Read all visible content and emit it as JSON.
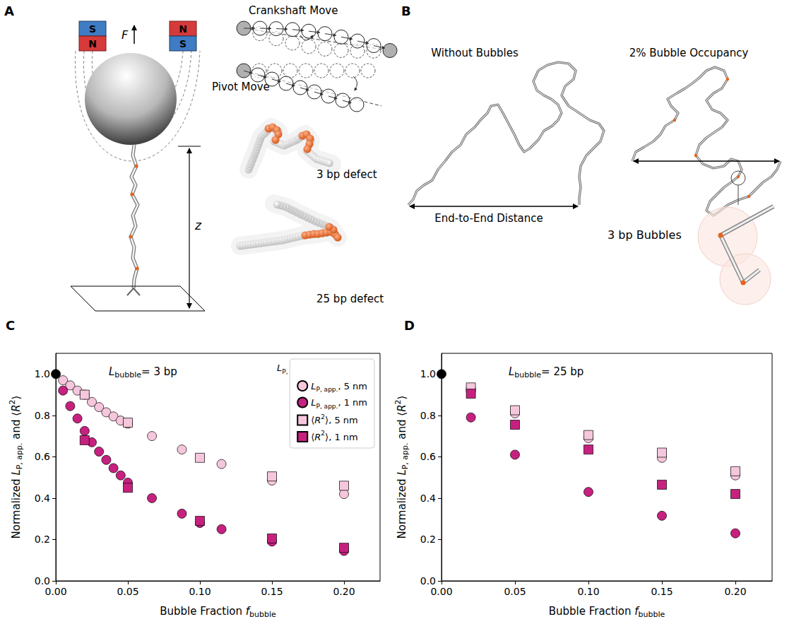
{
  "panel_labels": [
    "A",
    "B",
    "C",
    "D"
  ],
  "panel_a": {
    "magnet_left": [
      "S",
      "N"
    ],
    "magnet_right": [
      "N",
      "S"
    ],
    "force": "F",
    "height": "z",
    "moves": [
      "Crankshaft Move",
      "Pivot Move"
    ],
    "defects": [
      "3 bp defect",
      "25 bp defect"
    ]
  },
  "panel_b": {
    "titles": [
      "Without Bubbles",
      "2% Bubble Occupancy"
    ],
    "distance": "End-to-End Distance",
    "inset": "3 bp Bubbles"
  },
  "chart_data": [
    {
      "type": "scatter",
      "annotation": [
        [
          "L",
          "i"
        ],
        [
          "bubble",
          "s"
        ],
        [
          "= 3 bp",
          "n"
        ]
      ],
      "xlabel": [
        [
          "Bubble Fraction ",
          "n"
        ],
        [
          "f",
          "i"
        ],
        [
          "bubble",
          "s"
        ]
      ],
      "ylabel": [
        [
          "Normalized ",
          "n"
        ],
        [
          "L",
          "i"
        ],
        [
          "P, app.",
          "s"
        ],
        [
          " and ⟨",
          "n"
        ],
        [
          "R",
          "i"
        ],
        [
          "2",
          "p"
        ],
        [
          "⟩",
          "n"
        ]
      ],
      "xlim": [
        0,
        0.225
      ],
      "ylim": [
        0,
        1.1
      ],
      "xticks": [
        {
          "value": 0,
          "label": "0.00"
        },
        {
          "value": 0.05,
          "label": "0.05"
        },
        {
          "value": 0.1,
          "label": "0.10"
        },
        {
          "value": 0.15,
          "label": "0.15"
        },
        {
          "value": 0.2,
          "label": "0.20"
        }
      ],
      "yticks": [
        {
          "value": 0,
          "label": "0.0"
        },
        {
          "value": 0.2,
          "label": "0.2"
        },
        {
          "value": 0.4,
          "label": "0.4"
        },
        {
          "value": 0.6,
          "label": "0.6"
        },
        {
          "value": 0.8,
          "label": "0.8"
        },
        {
          "value": 1,
          "label": "1.0"
        }
      ],
      "grid": false,
      "legend": "upper right",
      "legend_title": [
        [
          "L",
          "i"
        ],
        [
          "P, bubble",
          "s"
        ]
      ],
      "series": [
        {
          "name": [
            [
              "L",
              "i"
            ],
            [
              "P, app.",
              "s"
            ],
            [
              ", 5 nm",
              "n"
            ]
          ],
          "color": "#f6c6dc",
          "marker": "circle",
          "x": [
            0.005,
            0.01,
            0.015,
            0.02,
            0.025,
            0.03,
            0.035,
            0.04,
            0.045,
            0.05,
            0.0667,
            0.0875,
            0.115,
            0.15,
            0.2
          ],
          "values": [
            0.97,
            0.945,
            0.92,
            0.9,
            0.865,
            0.84,
            0.815,
            0.795,
            0.775,
            0.76,
            0.7,
            0.635,
            0.565,
            0.485,
            0.42
          ]
        },
        {
          "name": [
            [
              "L",
              "i"
            ],
            [
              "P, app.",
              "s"
            ],
            [
              ", 1 nm",
              "n"
            ]
          ],
          "color": "#c7217f",
          "marker": "circle",
          "x": [
            0.005,
            0.01,
            0.015,
            0.02,
            0.025,
            0.03,
            0.035,
            0.04,
            0.045,
            0.05,
            0.0667,
            0.0875,
            0.1,
            0.115,
            0.15,
            0.2
          ],
          "values": [
            0.92,
            0.845,
            0.785,
            0.725,
            0.67,
            0.625,
            0.585,
            0.545,
            0.51,
            0.475,
            0.4,
            0.325,
            0.28,
            0.25,
            0.19,
            0.145
          ]
        },
        {
          "name": [
            [
              "⟨",
              "n"
            ],
            [
              "R",
              "i"
            ],
            [
              "2",
              "p"
            ],
            [
              "⟩, 5 nm",
              "n"
            ]
          ],
          "color": "#f6c6dc",
          "marker": "square",
          "x": [
            0.02,
            0.05,
            0.1,
            0.15,
            0.2
          ],
          "values": [
            0.9,
            0.765,
            0.595,
            0.505,
            0.46
          ]
        },
        {
          "name": [
            [
              "⟨",
              "n"
            ],
            [
              "R",
              "i"
            ],
            [
              "2",
              "p"
            ],
            [
              "⟩, 1 nm",
              "n"
            ]
          ],
          "color": "#c7217f",
          "marker": "square",
          "x": [
            0.02,
            0.05,
            0.1,
            0.15,
            0.2
          ],
          "values": [
            0.68,
            0.45,
            0.29,
            0.205,
            0.16
          ]
        },
        {
          "color": "#000000",
          "marker": "circle",
          "x": [
            0
          ],
          "values": [
            1
          ]
        }
      ]
    },
    {
      "type": "scatter",
      "annotation": [
        [
          "L",
          "i"
        ],
        [
          "bubble",
          "s"
        ],
        [
          "= 25 bp",
          "n"
        ]
      ],
      "xlabel": [
        [
          "Bubble Fraction ",
          "n"
        ],
        [
          "f",
          "i"
        ],
        [
          "bubble",
          "s"
        ]
      ],
      "ylabel": [
        [
          "Normalized ",
          "n"
        ],
        [
          "L",
          "i"
        ],
        [
          "P, app.",
          "s"
        ],
        [
          " and ⟨",
          "n"
        ],
        [
          "R",
          "i"
        ],
        [
          "2",
          "p"
        ],
        [
          "⟩",
          "n"
        ]
      ],
      "xlim": [
        0,
        0.225
      ],
      "ylim": [
        0,
        1.1
      ],
      "xticks": [
        {
          "value": 0,
          "label": "0.00"
        },
        {
          "value": 0.05,
          "label": "0.05"
        },
        {
          "value": 0.1,
          "label": "0.10"
        },
        {
          "value": 0.15,
          "label": "0.15"
        },
        {
          "value": 0.2,
          "label": "0.20"
        }
      ],
      "yticks": [
        {
          "value": 0,
          "label": "0.0"
        },
        {
          "value": 0.2,
          "label": "0.2"
        },
        {
          "value": 0.4,
          "label": "0.4"
        },
        {
          "value": 0.6,
          "label": "0.6"
        },
        {
          "value": 0.8,
          "label": "0.8"
        },
        {
          "value": 1,
          "label": "1.0"
        }
      ],
      "grid": false,
      "series": [
        {
          "name": [
            [
              "L",
              "i"
            ],
            [
              "P, app.",
              "s"
            ],
            [
              ", 5 nm",
              "n"
            ]
          ],
          "color": "#f6c6dc",
          "marker": "circle",
          "x": [
            0.02,
            0.05,
            0.1,
            0.15,
            0.2
          ],
          "values": [
            0.93,
            0.81,
            0.69,
            0.595,
            0.51
          ]
        },
        {
          "name": [
            [
              "L",
              "i"
            ],
            [
              "P, app.",
              "s"
            ],
            [
              ", 1 nm",
              "n"
            ]
          ],
          "color": "#c7217f",
          "marker": "circle",
          "x": [
            0.02,
            0.05,
            0.1,
            0.15,
            0.2
          ],
          "values": [
            0.79,
            0.61,
            0.43,
            0.315,
            0.23
          ]
        },
        {
          "name": [
            [
              "⟨",
              "n"
            ],
            [
              "R",
              "i"
            ],
            [
              "2",
              "p"
            ],
            [
              "⟩, 5 nm",
              "n"
            ]
          ],
          "color": "#f6c6dc",
          "marker": "square",
          "x": [
            0.02,
            0.05,
            0.1,
            0.15,
            0.2
          ],
          "values": [
            0.935,
            0.825,
            0.705,
            0.62,
            0.53
          ]
        },
        {
          "name": [
            [
              "⟨",
              "n"
            ],
            [
              "R",
              "i"
            ],
            [
              "2",
              "p"
            ],
            [
              "⟩, 1 nm",
              "n"
            ]
          ],
          "color": "#c7217f",
          "marker": "square",
          "x": [
            0.02,
            0.05,
            0.1,
            0.15,
            0.2
          ],
          "values": [
            0.905,
            0.755,
            0.635,
            0.465,
            0.42
          ]
        },
        {
          "color": "#000000",
          "marker": "circle",
          "x": [
            0
          ],
          "values": [
            1
          ]
        }
      ]
    }
  ]
}
